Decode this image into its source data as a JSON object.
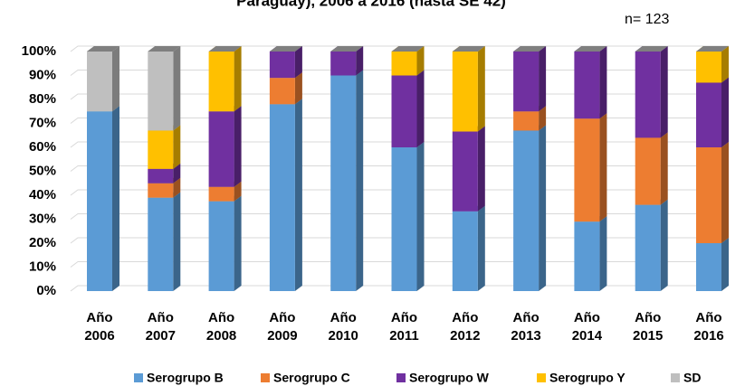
{
  "chart_data": {
    "type": "stacked_bar_3d",
    "title": "Paraguay), 2006 a 2016 (hasta SE 42)",
    "annotation": "n= 123",
    "categories": [
      [
        "Año",
        "2006"
      ],
      [
        "Año",
        "2007"
      ],
      [
        "Año",
        "2008"
      ],
      [
        "Año",
        "2009"
      ],
      [
        "Año",
        "2010"
      ],
      [
        "Año",
        "2011"
      ],
      [
        "Año",
        "2012"
      ],
      [
        "Año",
        "2013"
      ],
      [
        "Año",
        "2014"
      ],
      [
        "Año",
        "2015"
      ],
      [
        "Año",
        "2016"
      ]
    ],
    "series": [
      {
        "name": "Serogrupo B",
        "color": "#5b9bd5",
        "values": [
          75,
          39,
          37.5,
          78,
          90,
          60,
          33.3,
          67,
          29,
          36,
          20
        ]
      },
      {
        "name": "Serogrupo C",
        "color": "#ed7d31",
        "values": [
          0,
          6,
          6,
          11,
          0,
          0,
          0,
          8,
          43,
          28,
          40
        ]
      },
      {
        "name": "Serogrupo W",
        "color": "#7030a0",
        "values": [
          0,
          6,
          31.5,
          11,
          10,
          30,
          33.3,
          25,
          28,
          36,
          27
        ]
      },
      {
        "name": "Serogrupo Y",
        "color": "#ffc000",
        "values": [
          0,
          16,
          25,
          0,
          0,
          10,
          33.4,
          0,
          0,
          0,
          13
        ]
      },
      {
        "name": "SD",
        "color": "#bfbfbf",
        "values": [
          25,
          33,
          0,
          0,
          0,
          0,
          0,
          0,
          0,
          0,
          0
        ]
      }
    ],
    "ylim": [
      0,
      100
    ],
    "yticks": [
      {
        "value": 0,
        "label": "0%"
      },
      {
        "value": 10,
        "label": "10%"
      },
      {
        "value": 20,
        "label": "20%"
      },
      {
        "value": 30,
        "label": "30%"
      },
      {
        "value": 40,
        "label": "40%"
      },
      {
        "value": 50,
        "label": "50%"
      },
      {
        "value": 60,
        "label": "60%"
      },
      {
        "value": 70,
        "label": "70%"
      },
      {
        "value": 80,
        "label": "80%"
      },
      {
        "value": 90,
        "label": "90%"
      },
      {
        "value": 100,
        "label": "100%"
      }
    ],
    "grid": true,
    "legend": "bottom"
  }
}
